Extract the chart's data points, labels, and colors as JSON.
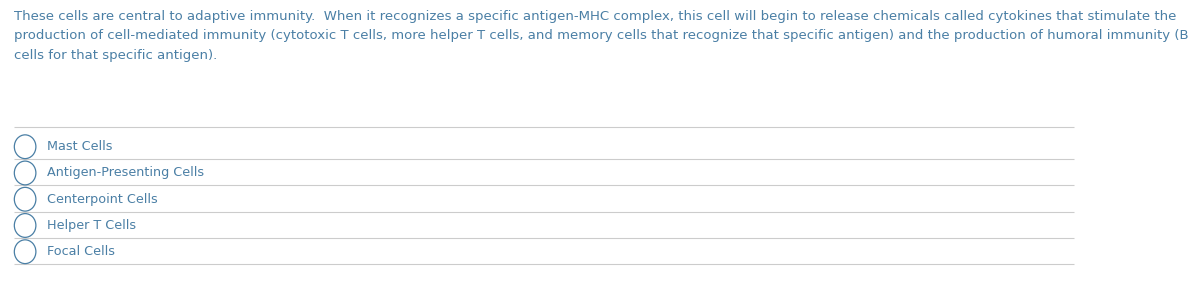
{
  "background_color": "#ffffff",
  "text_color": "#4a7fa5",
  "line_color": "#cccccc",
  "paragraph": "These cells are central to adaptive immunity.  When it recognizes a specific antigen-MHC complex, this cell will begin to release chemicals called cytokines that stimulate the production of cell-mediated immunity (cytotoxic T cells, more helper T cells, and memory cells that recognize that specific antigen) and the production of humoral immunity (B cells for that specific antigen).",
  "options": [
    "Mast Cells",
    "Antigen-Presenting Cells",
    "Centerpoint Cells",
    "Helper T Cells",
    "Focal Cells"
  ],
  "font_size_para": 9.5,
  "font_size_options": 9.2,
  "figsize": [
    12.0,
    2.85
  ],
  "dpi": 100
}
